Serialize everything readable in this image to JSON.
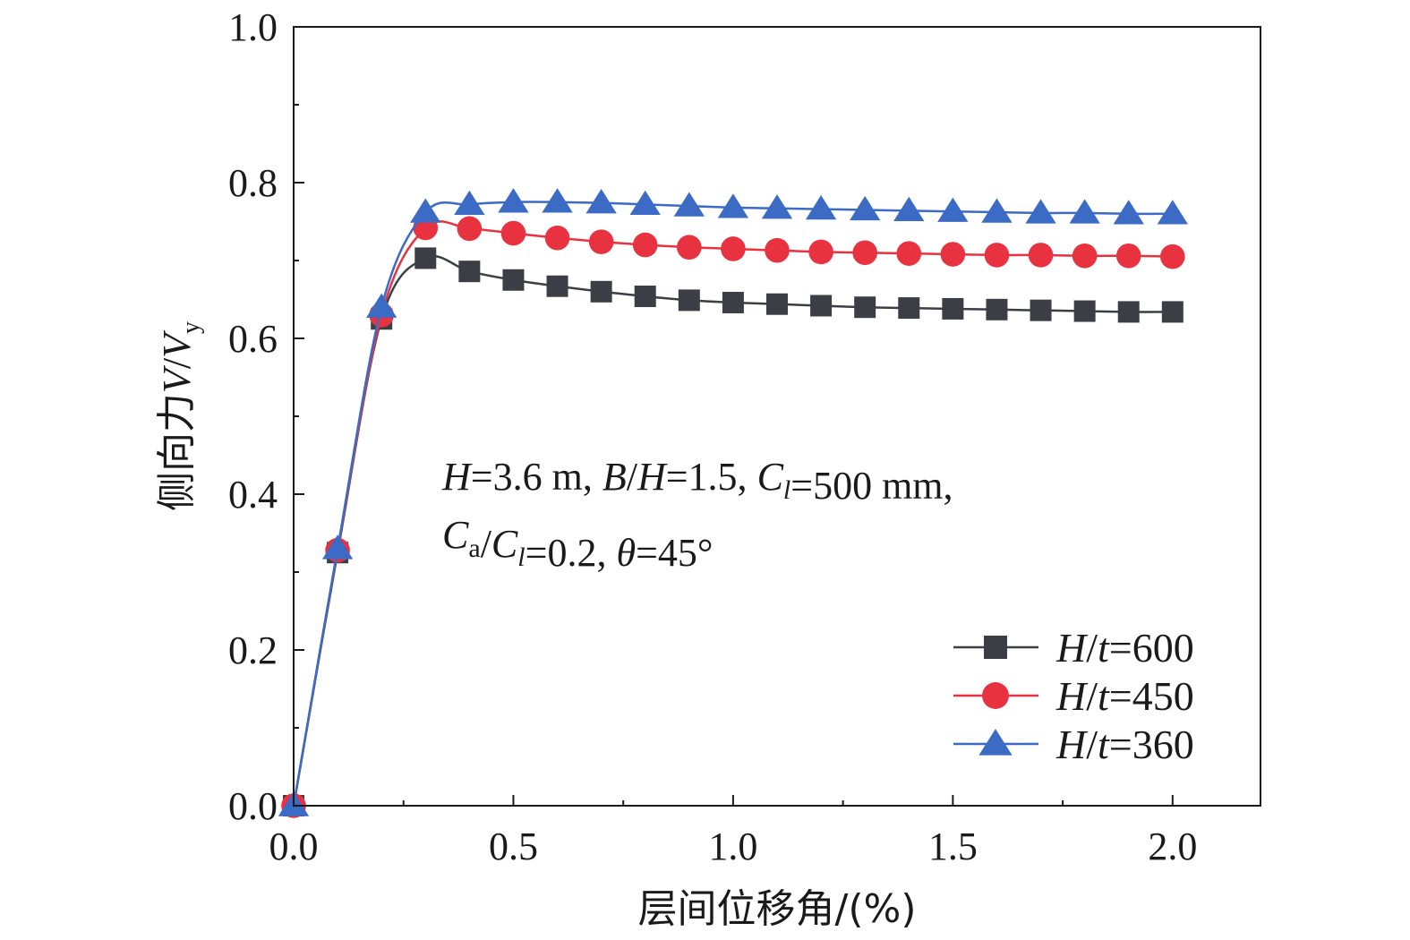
{
  "chart_data": {
    "type": "line",
    "xlabel": "层间位移角/(%)",
    "ylabel": {
      "prefix": "侧向力",
      "var1": "V",
      "sep": "/",
      "var2": "V",
      "sub": "y"
    },
    "xlim": [
      0,
      2.2
    ],
    "ylim": [
      0,
      1.0
    ],
    "xticks": [
      0.0,
      0.5,
      1.0,
      1.5,
      2.0
    ],
    "xtick_labels": [
      "0.0",
      "0.5",
      "1.0",
      "1.5",
      "2.0"
    ],
    "yticks": [
      0.0,
      0.2,
      0.4,
      0.6,
      0.8,
      1.0
    ],
    "ytick_labels": [
      "0.0",
      "0.2",
      "0.4",
      "0.6",
      "0.8",
      "1.0"
    ],
    "grid": false,
    "legend_position": "bottom-right",
    "x": [
      0.0,
      0.1,
      0.2,
      0.3,
      0.4,
      0.5,
      0.6,
      0.7,
      0.8,
      0.9,
      1.0,
      1.1,
      1.2,
      1.3,
      1.4,
      1.5,
      1.6,
      1.7,
      1.8,
      1.9,
      2.0
    ],
    "series": [
      {
        "name": "H/t=600",
        "legend": {
          "v1": "H",
          "sep": "/",
          "v2": "t",
          "val": "=600"
        },
        "color": "#3b3f45",
        "marker": "square",
        "values": [
          0.0,
          0.325,
          0.625,
          0.703,
          0.686,
          0.675,
          0.667,
          0.66,
          0.654,
          0.649,
          0.646,
          0.644,
          0.642,
          0.64,
          0.639,
          0.638,
          0.637,
          0.636,
          0.635,
          0.634,
          0.634
        ]
      },
      {
        "name": "H/t=450",
        "legend": {
          "v1": "H",
          "sep": "/",
          "v2": "t",
          "val": "=450"
        },
        "color": "#e8323f",
        "marker": "circle",
        "values": [
          0.0,
          0.328,
          0.63,
          0.742,
          0.741,
          0.735,
          0.729,
          0.724,
          0.72,
          0.717,
          0.715,
          0.713,
          0.711,
          0.71,
          0.709,
          0.708,
          0.707,
          0.707,
          0.706,
          0.706,
          0.705
        ]
      },
      {
        "name": "H/t=360",
        "legend": {
          "v1": "H",
          "sep": "/",
          "v2": "t",
          "val": "=360"
        },
        "color": "#3b6bc4",
        "marker": "triangle",
        "values": [
          0.0,
          0.33,
          0.64,
          0.762,
          0.772,
          0.775,
          0.775,
          0.774,
          0.772,
          0.77,
          0.768,
          0.767,
          0.766,
          0.765,
          0.764,
          0.763,
          0.762,
          0.761,
          0.761,
          0.76,
          0.76
        ]
      }
    ],
    "annotation": {
      "line1": [
        {
          "t": "H",
          "i": true
        },
        {
          "t": "=3.6 m, "
        },
        {
          "t": "B",
          "i": true
        },
        {
          "t": "/"
        },
        {
          "t": "H",
          "i": true
        },
        {
          "t": "=1.5, "
        },
        {
          "t": "C",
          "i": true
        },
        {
          "t": "l",
          "i": true,
          "sub": true
        },
        {
          "t": "=500 mm,"
        }
      ],
      "line2": [
        {
          "t": "C",
          "i": true
        },
        {
          "t": "a",
          "sub": true
        },
        {
          "t": "/"
        },
        {
          "t": "C",
          "i": true
        },
        {
          "t": "l",
          "i": true,
          "sub": true
        },
        {
          "t": "=0.2, "
        },
        {
          "t": "θ",
          "i": true
        },
        {
          "t": "=45°"
        }
      ]
    }
  }
}
